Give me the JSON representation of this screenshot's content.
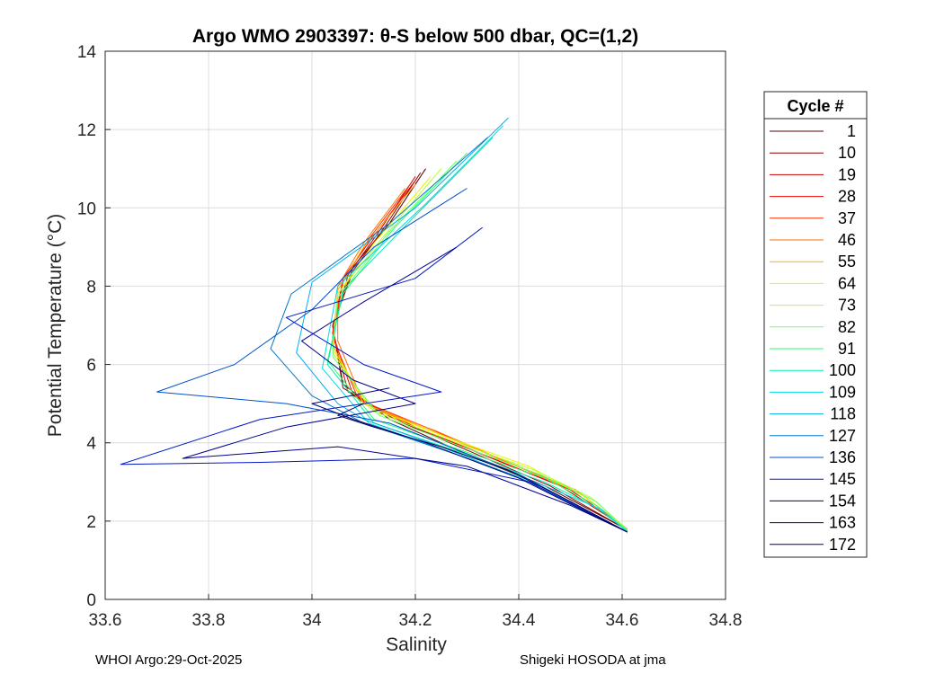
{
  "chart_data": {
    "type": "line",
    "title": "Argo WMO 2903397: θ-S below 500 dbar,  QC=(1,2)",
    "xlabel": "Salinity",
    "ylabel": "Potential Temperature (°C)",
    "xlim": [
      33.6,
      34.8
    ],
    "ylim": [
      0,
      14
    ],
    "x_ticks": [
      33.6,
      33.8,
      34,
      34.2,
      34.4,
      34.6,
      34.8
    ],
    "x_tick_labels": [
      "33.6",
      "33.8",
      "34",
      "34.2",
      "34.4",
      "34.6",
      "34.8"
    ],
    "y_ticks": [
      0,
      2,
      4,
      6,
      8,
      10,
      12,
      14
    ],
    "y_tick_labels": [
      "0",
      "2",
      "4",
      "6",
      "8",
      "10",
      "12",
      "14"
    ],
    "grid": true,
    "legend_title": "Cycle #",
    "legend_position": "outside-right",
    "series": [
      {
        "name": "1",
        "color": "#5a0000",
        "points": [
          [
            34.22,
            11.0
          ],
          [
            34.15,
            9.6
          ],
          [
            34.08,
            8.5
          ],
          [
            34.04,
            7.0
          ],
          [
            34.06,
            5.5
          ],
          [
            34.15,
            4.6
          ],
          [
            34.3,
            3.7
          ],
          [
            34.45,
            2.9
          ],
          [
            34.6,
            1.85
          ]
        ]
      },
      {
        "name": "10",
        "color": "#8c0000",
        "points": [
          [
            34.21,
            10.9
          ],
          [
            34.14,
            9.5
          ],
          [
            34.08,
            8.4
          ],
          [
            34.04,
            7.0
          ],
          [
            34.06,
            5.4
          ],
          [
            34.16,
            4.6
          ],
          [
            34.32,
            3.7
          ],
          [
            34.46,
            2.9
          ],
          [
            34.6,
            1.85
          ]
        ]
      },
      {
        "name": "19",
        "color": "#c80000",
        "points": [
          [
            34.2,
            10.8
          ],
          [
            34.13,
            9.4
          ],
          [
            34.07,
            8.3
          ],
          [
            34.04,
            6.8
          ],
          [
            34.07,
            5.3
          ],
          [
            34.18,
            4.5
          ],
          [
            34.33,
            3.7
          ],
          [
            34.48,
            2.9
          ],
          [
            34.61,
            1.8
          ]
        ]
      },
      {
        "name": "28",
        "color": "#f00000",
        "points": [
          [
            34.2,
            10.7
          ],
          [
            34.12,
            9.3
          ],
          [
            34.06,
            8.2
          ],
          [
            34.04,
            6.8
          ],
          [
            34.08,
            5.2
          ],
          [
            34.2,
            4.4
          ],
          [
            34.35,
            3.6
          ],
          [
            34.5,
            2.8
          ],
          [
            34.61,
            1.8
          ]
        ]
      },
      {
        "name": "37",
        "color": "#ff3000",
        "points": [
          [
            34.19,
            10.6
          ],
          [
            34.11,
            9.2
          ],
          [
            34.06,
            8.1
          ],
          [
            34.04,
            6.7
          ],
          [
            34.09,
            5.1
          ],
          [
            34.22,
            4.4
          ],
          [
            34.36,
            3.6
          ],
          [
            34.51,
            2.8
          ],
          [
            34.61,
            1.8
          ]
        ]
      },
      {
        "name": "46",
        "color": "#ff7000",
        "points": [
          [
            34.18,
            10.5
          ],
          [
            34.1,
            9.1
          ],
          [
            34.05,
            8.0
          ],
          [
            34.05,
            6.6
          ],
          [
            34.1,
            5.0
          ],
          [
            34.24,
            4.3
          ],
          [
            34.38,
            3.5
          ],
          [
            34.52,
            2.7
          ],
          [
            34.61,
            1.8
          ]
        ]
      },
      {
        "name": "55",
        "color": "#ffb000",
        "points": [
          [
            34.2,
            10.6
          ],
          [
            34.1,
            9.0
          ],
          [
            34.05,
            7.9
          ],
          [
            34.04,
            6.5
          ],
          [
            34.1,
            5.0
          ],
          [
            34.25,
            4.2
          ],
          [
            34.4,
            3.4
          ],
          [
            34.52,
            2.7
          ],
          [
            34.61,
            1.8
          ]
        ]
      },
      {
        "name": "64",
        "color": "#f0f000",
        "points": [
          [
            34.23,
            10.8
          ],
          [
            34.12,
            9.1
          ],
          [
            34.05,
            7.8
          ],
          [
            34.04,
            6.4
          ],
          [
            34.11,
            4.9
          ],
          [
            34.27,
            4.1
          ],
          [
            34.42,
            3.4
          ],
          [
            34.53,
            2.6
          ],
          [
            34.61,
            1.78
          ]
        ]
      },
      {
        "name": "73",
        "color": "#b0ff30",
        "points": [
          [
            34.25,
            11.0
          ],
          [
            34.14,
            9.3
          ],
          [
            34.05,
            7.8
          ],
          [
            34.04,
            6.3
          ],
          [
            34.12,
            4.8
          ],
          [
            34.28,
            4.0
          ],
          [
            34.43,
            3.3
          ],
          [
            34.54,
            2.6
          ],
          [
            34.61,
            1.78
          ]
        ]
      },
      {
        "name": "82",
        "color": "#70ff70",
        "points": [
          [
            34.28,
            11.2
          ],
          [
            34.15,
            9.4
          ],
          [
            34.05,
            7.7
          ],
          [
            34.04,
            6.2
          ],
          [
            34.13,
            4.7
          ],
          [
            34.29,
            3.9
          ],
          [
            34.44,
            3.2
          ],
          [
            34.55,
            2.5
          ],
          [
            34.61,
            1.76
          ]
        ]
      },
      {
        "name": "91",
        "color": "#30ff70",
        "points": [
          [
            34.3,
            11.4
          ],
          [
            34.16,
            9.5
          ],
          [
            34.06,
            7.8
          ],
          [
            34.03,
            6.1
          ],
          [
            34.12,
            4.6
          ],
          [
            34.29,
            3.8
          ],
          [
            34.45,
            3.1
          ],
          [
            34.55,
            2.4
          ],
          [
            34.61,
            1.75
          ]
        ]
      },
      {
        "name": "100",
        "color": "#00f0b0",
        "points": [
          [
            34.35,
            11.8
          ],
          [
            34.2,
            9.8
          ],
          [
            34.06,
            7.9
          ],
          [
            34.03,
            6.0
          ],
          [
            34.12,
            4.5
          ],
          [
            34.3,
            3.7
          ],
          [
            34.45,
            3.0
          ],
          [
            34.55,
            2.35
          ],
          [
            34.61,
            1.74
          ]
        ]
      },
      {
        "name": "109",
        "color": "#00d8e8",
        "points": [
          [
            34.37,
            12.1
          ],
          [
            34.22,
            10.1
          ],
          [
            34.05,
            8.0
          ],
          [
            34.02,
            5.9
          ],
          [
            34.11,
            4.5
          ],
          [
            34.3,
            3.6
          ],
          [
            34.45,
            2.9
          ],
          [
            34.56,
            2.3
          ],
          [
            34.61,
            1.72
          ]
        ]
      },
      {
        "name": "118",
        "color": "#00b0f0",
        "points": [
          [
            34.38,
            12.3
          ],
          [
            34.2,
            10.0
          ],
          [
            34.0,
            8.1
          ],
          [
            33.97,
            6.3
          ],
          [
            34.05,
            5.0
          ],
          [
            34.1,
            4.6
          ],
          [
            34.25,
            3.9
          ],
          [
            34.42,
            3.0
          ],
          [
            34.61,
            1.72
          ]
        ]
      },
      {
        "name": "127",
        "color": "#0078c8",
        "points": [
          [
            34.34,
            11.8
          ],
          [
            34.15,
            9.6
          ],
          [
            33.96,
            7.8
          ],
          [
            33.92,
            6.4
          ],
          [
            34.0,
            5.2
          ],
          [
            34.1,
            4.5
          ],
          [
            34.28,
            3.7
          ],
          [
            34.44,
            2.9
          ],
          [
            34.61,
            1.72
          ]
        ]
      },
      {
        "name": "136",
        "color": "#0050d0",
        "points": [
          [
            34.3,
            10.5
          ],
          [
            34.12,
            9.0
          ],
          [
            34.0,
            7.4
          ],
          [
            33.85,
            6.0
          ],
          [
            33.7,
            5.3
          ],
          [
            33.95,
            5.0
          ],
          [
            34.15,
            4.5
          ],
          [
            34.4,
            3.2
          ],
          [
            34.61,
            1.72
          ]
        ]
      },
      {
        "name": "145",
        "color": "#0018c8",
        "points": [
          [
            34.33,
            9.5
          ],
          [
            34.2,
            8.2
          ],
          [
            33.95,
            7.2
          ],
          [
            34.1,
            6.0
          ],
          [
            34.25,
            5.3
          ],
          [
            33.9,
            4.6
          ],
          [
            33.63,
            3.45
          ],
          [
            33.9,
            3.5
          ],
          [
            34.2,
            3.6
          ],
          [
            34.42,
            3.0
          ],
          [
            34.61,
            1.72
          ]
        ]
      },
      {
        "name": "154",
        "color": "#000090",
        "points": [
          [
            34.28,
            9.0
          ],
          [
            34.1,
            7.6
          ],
          [
            33.98,
            6.6
          ],
          [
            34.08,
            5.6
          ],
          [
            34.2,
            5.0
          ],
          [
            33.95,
            4.4
          ],
          [
            33.75,
            3.6
          ],
          [
            34.05,
            3.9
          ],
          [
            34.3,
            3.4
          ],
          [
            34.5,
            2.4
          ],
          [
            34.61,
            1.72
          ]
        ]
      },
      {
        "name": "163",
        "color": "#000050",
        "points": [
          [
            34.1,
            5.0
          ],
          [
            34.05,
            4.7
          ],
          [
            34.12,
            4.4
          ],
          [
            34.25,
            3.9
          ],
          [
            34.38,
            3.3
          ],
          [
            34.5,
            2.5
          ],
          [
            34.61,
            1.72
          ]
        ]
      },
      {
        "name": "172",
        "color": "#000070",
        "points": [
          [
            34.15,
            5.4
          ],
          [
            34.0,
            5.0
          ],
          [
            34.08,
            4.6
          ],
          [
            34.22,
            4.0
          ],
          [
            34.4,
            3.1
          ],
          [
            34.52,
            2.3
          ],
          [
            34.61,
            1.72
          ]
        ]
      }
    ]
  },
  "footer": {
    "left": "WHOI Argo:29-Oct-2025",
    "right": "Shigeki HOSODA at jma"
  }
}
